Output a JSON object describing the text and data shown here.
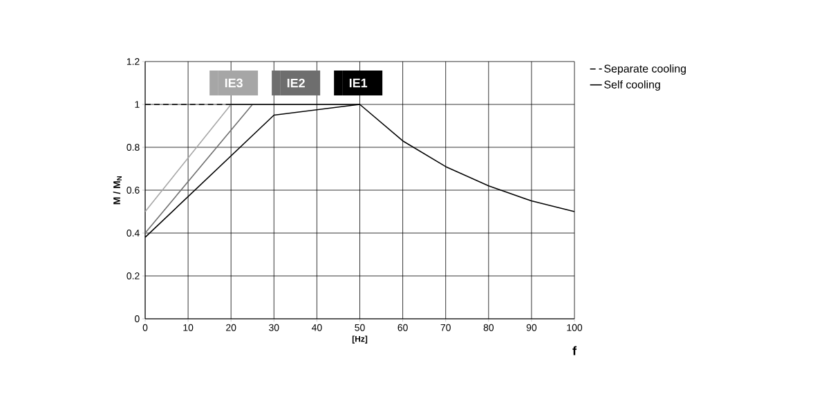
{
  "chart_data": {
    "type": "line",
    "xlabel": "[Hz]",
    "ylabel": "M / M$_{N}$",
    "annotations": [
      "f"
    ],
    "xlim": [
      0,
      100
    ],
    "xticks": [
      0,
      10,
      20,
      30,
      40,
      50,
      60,
      70,
      80,
      90,
      100
    ],
    "ylim": [
      0,
      1.2
    ],
    "yticks": [
      0,
      0.2,
      0.4,
      0.6,
      0.8,
      1,
      1.2
    ],
    "grid": true,
    "legend": "top right",
    "marker": "none",
    "series": [
      {
        "name": "IE3",
        "color": "#a6a6a6",
        "x": [
          0,
          20
        ],
        "values": [
          0.5,
          1
        ]
      },
      {
        "name": "IE2",
        "color": "#6e6e6e",
        "x": [
          0,
          25
        ],
        "values": [
          0.4,
          1
        ]
      },
      {
        "name": "IE1",
        "color": "#000000",
        "x": [
          0,
          30,
          50,
          60,
          70,
          80,
          90,
          100
        ],
        "values": [
          0.38,
          0.95,
          1,
          0.83,
          0.71,
          0.62,
          0.55,
          0.5
        ]
      },
      {
        "name": "Separate cooling",
        "color": "#000000",
        "line_style": "dashed",
        "x": [
          0,
          20
        ],
        "values": [
          1,
          1
        ]
      },
      {
        "name": "Self cooling",
        "color": "#000000",
        "line_style": "solid",
        "x": [
          20,
          50
        ],
        "values": [
          1,
          1
        ]
      }
    ]
  }
}
